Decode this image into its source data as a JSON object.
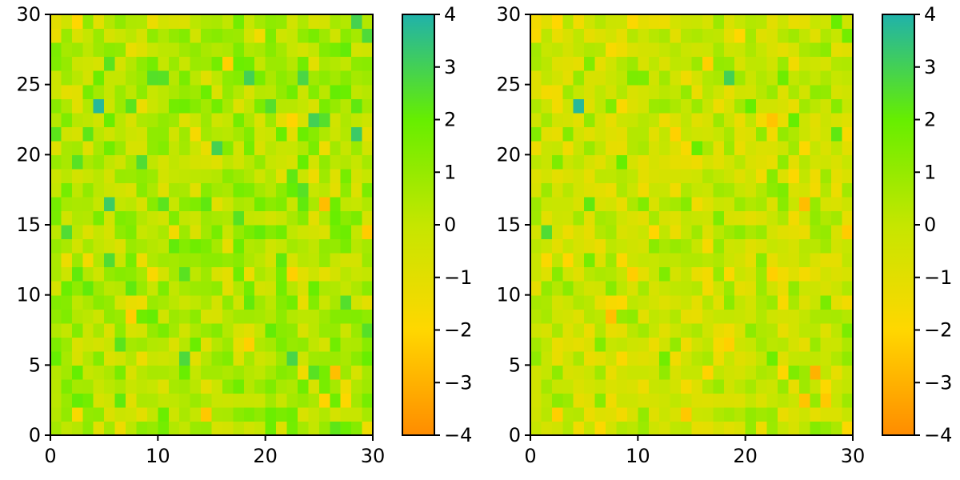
{
  "chart_data": [
    {
      "type": "heatmap",
      "title": "",
      "xlabel": "",
      "ylabel": "",
      "xlim": [
        0,
        30
      ],
      "ylim": [
        0,
        30
      ],
      "xticks": [
        0,
        10,
        20,
        30
      ],
      "yticks": [
        0,
        5,
        10,
        15,
        20,
        25,
        30
      ],
      "grid_size": 30,
      "colorbar": {
        "vmin": -4,
        "vmax": 4,
        "ticks": [
          -4,
          -3,
          -2,
          -1,
          0,
          1,
          2,
          3,
          4
        ]
      },
      "colormap": [
        "#ff8c00",
        "#ffd700",
        "#c5e600",
        "#66ee00",
        "#20b2aa"
      ],
      "value_distribution": {
        "mean": 0.5,
        "std": 0.9
      },
      "highlights": [
        {
          "x": 4.5,
          "y": 23.5,
          "value": 3.8
        },
        {
          "x": 18.5,
          "y": 25.5,
          "value": 3.0
        },
        {
          "x": 25.5,
          "y": 16.5,
          "value": -2.7
        },
        {
          "x": 1.5,
          "y": 14.5,
          "value": 2.6
        },
        {
          "x": 14.5,
          "y": 1.5,
          "value": -2.4
        },
        {
          "x": 16.5,
          "y": 26.5,
          "value": -2.2
        },
        {
          "x": 2.5,
          "y": 29.5,
          "value": -2.0
        },
        {
          "x": 8.5,
          "y": 19.5,
          "value": 2.6
        },
        {
          "x": 20.5,
          "y": 23.5,
          "value": 2.5
        },
        {
          "x": 25.5,
          "y": 22.5,
          "value": 2.5
        },
        {
          "x": 22.5,
          "y": 11.5,
          "value": -2.2
        },
        {
          "x": 18.5,
          "y": 6.5,
          "value": -2.2
        },
        {
          "x": 29.5,
          "y": 14.5,
          "value": -2.3
        }
      ]
    },
    {
      "type": "heatmap",
      "title": "",
      "xlabel": "",
      "ylabel": "",
      "xlim": [
        0,
        30
      ],
      "ylim": [
        0,
        30
      ],
      "xticks": [
        0,
        10,
        20,
        30
      ],
      "yticks": [
        0,
        5,
        10,
        15,
        20,
        25,
        30
      ],
      "grid_size": 30,
      "colorbar": {
        "vmin": -4,
        "vmax": 4,
        "ticks": [
          -4,
          -3,
          -2,
          -1,
          0,
          1,
          2,
          3,
          4
        ]
      },
      "colormap": [
        "#ff8c00",
        "#ffd700",
        "#c5e600",
        "#66ee00",
        "#20b2aa"
      ],
      "value_distribution": {
        "mean": -0.2,
        "std": 0.8
      },
      "highlights": [
        {
          "x": 4.5,
          "y": 23.5,
          "value": 3.8
        },
        {
          "x": 18.5,
          "y": 25.5,
          "value": 3.0
        },
        {
          "x": 25.5,
          "y": 16.5,
          "value": -2.7
        },
        {
          "x": 1.5,
          "y": 14.5,
          "value": 2.6
        },
        {
          "x": 14.5,
          "y": 1.5,
          "value": -2.4
        },
        {
          "x": 16.5,
          "y": 26.5,
          "value": -2.2
        },
        {
          "x": 2.5,
          "y": 29.5,
          "value": -2.0
        },
        {
          "x": 8.5,
          "y": 19.5,
          "value": 2.0
        },
        {
          "x": 20.5,
          "y": 23.5,
          "value": 2.0
        },
        {
          "x": 22.5,
          "y": 11.5,
          "value": -2.2
        },
        {
          "x": 18.5,
          "y": 6.5,
          "value": -2.2
        },
        {
          "x": 29.5,
          "y": 14.5,
          "value": -2.3
        },
        {
          "x": 16.5,
          "y": 4.5,
          "value": -2.1
        }
      ]
    }
  ]
}
